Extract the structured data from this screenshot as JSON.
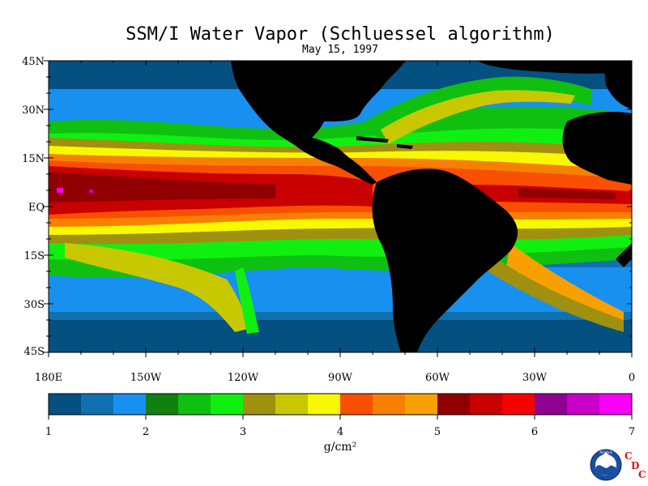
{
  "title": "SSM/I Water Vapor (Schluessel algorithm)",
  "subtitle": "May 15, 1997",
  "lat_labels": [
    "45N",
    "30N",
    "15N",
    "EQ",
    "15S",
    "30S",
    "45S"
  ],
  "lon_labels": [
    "180E",
    "150W",
    "120W",
    "90W",
    "60W",
    "30W",
    "0"
  ],
  "colorbar": {
    "ticks": [
      "1",
      "2",
      "3",
      "4",
      "5",
      "6",
      "7"
    ],
    "unit_label": "g/cm²",
    "colors": [
      "#045080",
      "#1070b0",
      "#1890f0",
      "#108010",
      "#10c010",
      "#10f010",
      "#a09010",
      "#c8c800",
      "#f8f800",
      "#f85000",
      "#f88000",
      "#f8a000",
      "#900000",
      "#c80000",
      "#f80000",
      "#900090",
      "#c800c8",
      "#f800f8"
    ]
  },
  "logo": {
    "name": "NOAA",
    "letters": [
      "C",
      "D",
      "C"
    ]
  },
  "land_color": "#000000"
}
